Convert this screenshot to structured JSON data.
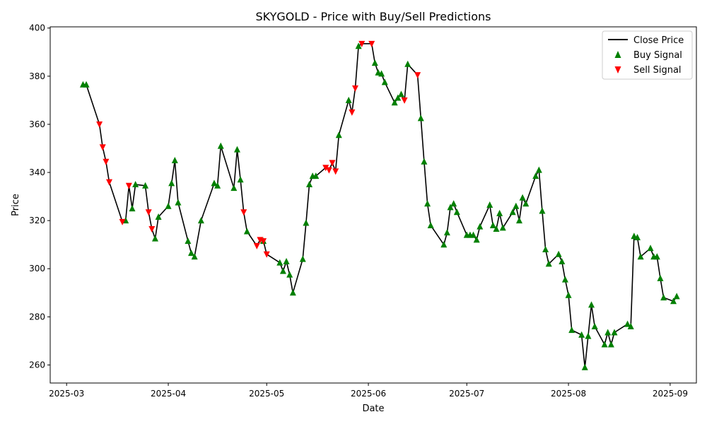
{
  "chart_data": {
    "type": "line",
    "title": "SKYGOLD - Price with Buy/Sell Predictions",
    "xlabel": "Date",
    "ylabel": "Price",
    "x_ticks": [
      "2025-03",
      "2025-04",
      "2025-05",
      "2025-06",
      "2025-07",
      "2025-08",
      "2025-09"
    ],
    "y_ticks": [
      260,
      280,
      300,
      320,
      340,
      360,
      380,
      400
    ],
    "xlim": [
      "2025-02-24",
      "2025-09-09"
    ],
    "ylim": [
      252.5,
      400.5
    ],
    "legend": {
      "position": "top-right",
      "entries": [
        "Close Price",
        "Buy Signal",
        "Sell Signal"
      ]
    },
    "colors": {
      "line": "#000000",
      "buy": "#008000",
      "sell": "#ff0000"
    },
    "series": [
      {
        "name": "Close Price",
        "points": [
          [
            "2025-03-06",
            376.5
          ],
          [
            "2025-03-07",
            376.5
          ],
          [
            "2025-03-11",
            360.0
          ],
          [
            "2025-03-12",
            350.5
          ],
          [
            "2025-03-13",
            344.5
          ],
          [
            "2025-03-14",
            336.0
          ],
          [
            "2025-03-18",
            319.5
          ],
          [
            "2025-03-19",
            320.0
          ],
          [
            "2025-03-20",
            334.5
          ],
          [
            "2025-03-21",
            325.0
          ],
          [
            "2025-03-22",
            335.0
          ],
          [
            "2025-03-25",
            334.5
          ],
          [
            "2025-03-26",
            323.5
          ],
          [
            "2025-03-27",
            316.5
          ],
          [
            "2025-03-28",
            312.5
          ],
          [
            "2025-03-29",
            321.5
          ],
          [
            "2025-04-01",
            326.0
          ],
          [
            "2025-04-02",
            335.5
          ],
          [
            "2025-04-03",
            345.0
          ],
          [
            "2025-04-04",
            327.5
          ],
          [
            "2025-04-07",
            311.5
          ],
          [
            "2025-04-08",
            306.5
          ],
          [
            "2025-04-09",
            305.0
          ],
          [
            "2025-04-11",
            320.0
          ],
          [
            "2025-04-15",
            335.5
          ],
          [
            "2025-04-16",
            334.5
          ],
          [
            "2025-04-17",
            351.0
          ],
          [
            "2025-04-21",
            333.5
          ],
          [
            "2025-04-22",
            349.5
          ],
          [
            "2025-04-23",
            337.0
          ],
          [
            "2025-04-24",
            323.5
          ],
          [
            "2025-04-25",
            315.5
          ],
          [
            "2025-04-28",
            309.5
          ],
          [
            "2025-04-29",
            312.0
          ],
          [
            "2025-04-30",
            311.5
          ],
          [
            "2025-05-01",
            306.0
          ],
          [
            "2025-05-05",
            302.5
          ],
          [
            "2025-05-06",
            299.0
          ],
          [
            "2025-05-07",
            303.0
          ],
          [
            "2025-05-08",
            297.5
          ],
          [
            "2025-05-09",
            290.0
          ],
          [
            "2025-05-12",
            304.0
          ],
          [
            "2025-05-13",
            319.0
          ],
          [
            "2025-05-14",
            335.0
          ],
          [
            "2025-05-15",
            338.5
          ],
          [
            "2025-05-16",
            338.5
          ],
          [
            "2025-05-19",
            342.0
          ],
          [
            "2025-05-20",
            341.0
          ],
          [
            "2025-05-21",
            344.0
          ],
          [
            "2025-05-22",
            340.5
          ],
          [
            "2025-05-23",
            355.5
          ],
          [
            "2025-05-26",
            370.0
          ],
          [
            "2025-05-27",
            365.0
          ],
          [
            "2025-05-28",
            375.0
          ],
          [
            "2025-05-29",
            392.5
          ],
          [
            "2025-05-30",
            393.5
          ],
          [
            "2025-06-02",
            393.5
          ],
          [
            "2025-06-03",
            385.5
          ],
          [
            "2025-06-04",
            381.5
          ],
          [
            "2025-06-05",
            381.0
          ],
          [
            "2025-06-06",
            377.5
          ],
          [
            "2025-06-09",
            369.0
          ],
          [
            "2025-06-10",
            371.0
          ],
          [
            "2025-06-11",
            372.5
          ],
          [
            "2025-06-12",
            370.0
          ],
          [
            "2025-06-13",
            385.0
          ],
          [
            "2025-06-16",
            380.5
          ],
          [
            "2025-06-17",
            362.5
          ],
          [
            "2025-06-18",
            344.5
          ],
          [
            "2025-06-19",
            327.0
          ],
          [
            "2025-06-20",
            318.0
          ],
          [
            "2025-06-24",
            310.0
          ],
          [
            "2025-06-25",
            315.0
          ],
          [
            "2025-06-26",
            325.5
          ],
          [
            "2025-06-27",
            327.0
          ],
          [
            "2025-06-28",
            323.5
          ],
          [
            "2025-07-01",
            314.0
          ],
          [
            "2025-07-02",
            314.0
          ],
          [
            "2025-07-03",
            314.0
          ],
          [
            "2025-07-04",
            312.0
          ],
          [
            "2025-07-05",
            317.5
          ],
          [
            "2025-07-08",
            326.5
          ],
          [
            "2025-07-09",
            318.0
          ],
          [
            "2025-07-10",
            316.5
          ],
          [
            "2025-07-11",
            323.0
          ],
          [
            "2025-07-12",
            317.0
          ],
          [
            "2025-07-15",
            323.5
          ],
          [
            "2025-07-16",
            326.0
          ],
          [
            "2025-07-17",
            320.0
          ],
          [
            "2025-07-18",
            329.5
          ],
          [
            "2025-07-19",
            327.0
          ],
          [
            "2025-07-22",
            338.5
          ],
          [
            "2025-07-23",
            341.0
          ],
          [
            "2025-07-24",
            324.0
          ],
          [
            "2025-07-25",
            308.0
          ],
          [
            "2025-07-26",
            302.0
          ],
          [
            "2025-07-29",
            306.0
          ],
          [
            "2025-07-30",
            303.0
          ],
          [
            "2025-07-31",
            295.5
          ],
          [
            "2025-08-01",
            289.0
          ],
          [
            "2025-08-02",
            274.5
          ],
          [
            "2025-08-05",
            272.5
          ],
          [
            "2025-08-06",
            259.0
          ],
          [
            "2025-08-07",
            272.0
          ],
          [
            "2025-08-08",
            285.0
          ],
          [
            "2025-08-09",
            276.0
          ],
          [
            "2025-08-12",
            268.5
          ],
          [
            "2025-08-13",
            273.5
          ],
          [
            "2025-08-14",
            268.5
          ],
          [
            "2025-08-15",
            273.5
          ],
          [
            "2025-08-19",
            277.0
          ],
          [
            "2025-08-20",
            276.0
          ],
          [
            "2025-08-21",
            313.5
          ],
          [
            "2025-08-22",
            313.0
          ],
          [
            "2025-08-23",
            305.0
          ],
          [
            "2025-08-26",
            308.5
          ],
          [
            "2025-08-27",
            305.0
          ],
          [
            "2025-08-28",
            305.0
          ],
          [
            "2025-08-29",
            296.0
          ],
          [
            "2025-08-30",
            288.0
          ],
          [
            "2025-09-02",
            286.5
          ],
          [
            "2025-09-03",
            288.5
          ]
        ]
      },
      {
        "name": "Buy Signal",
        "points": [
          [
            "2025-03-06",
            376.5
          ],
          [
            "2025-03-07",
            376.5
          ],
          [
            "2025-03-19",
            320.0
          ],
          [
            "2025-03-21",
            325.0
          ],
          [
            "2025-03-22",
            335.0
          ],
          [
            "2025-03-25",
            334.5
          ],
          [
            "2025-03-28",
            312.5
          ],
          [
            "2025-03-29",
            321.5
          ],
          [
            "2025-04-01",
            326.0
          ],
          [
            "2025-04-02",
            335.5
          ],
          [
            "2025-04-03",
            345.0
          ],
          [
            "2025-04-04",
            327.5
          ],
          [
            "2025-04-07",
            311.5
          ],
          [
            "2025-04-08",
            306.5
          ],
          [
            "2025-04-09",
            305.0
          ],
          [
            "2025-04-11",
            320.0
          ],
          [
            "2025-04-15",
            335.5
          ],
          [
            "2025-04-16",
            334.5
          ],
          [
            "2025-04-17",
            351.0
          ],
          [
            "2025-04-21",
            333.5
          ],
          [
            "2025-04-22",
            349.5
          ],
          [
            "2025-04-23",
            337.0
          ],
          [
            "2025-04-25",
            315.5
          ],
          [
            "2025-04-30",
            311.5
          ],
          [
            "2025-05-05",
            302.5
          ],
          [
            "2025-05-06",
            299.0
          ],
          [
            "2025-05-07",
            303.0
          ],
          [
            "2025-05-08",
            297.5
          ],
          [
            "2025-05-09",
            290.0
          ],
          [
            "2025-05-12",
            304.0
          ],
          [
            "2025-05-13",
            319.0
          ],
          [
            "2025-05-14",
            335.0
          ],
          [
            "2025-05-15",
            338.5
          ],
          [
            "2025-05-16",
            338.5
          ],
          [
            "2025-05-23",
            355.5
          ],
          [
            "2025-05-26",
            370.0
          ],
          [
            "2025-05-29",
            392.5
          ],
          [
            "2025-06-03",
            385.5
          ],
          [
            "2025-06-04",
            381.5
          ],
          [
            "2025-06-05",
            381.0
          ],
          [
            "2025-06-06",
            377.5
          ],
          [
            "2025-06-09",
            369.0
          ],
          [
            "2025-06-10",
            371.0
          ],
          [
            "2025-06-11",
            372.5
          ],
          [
            "2025-06-13",
            385.0
          ],
          [
            "2025-06-17",
            362.5
          ],
          [
            "2025-06-18",
            344.5
          ],
          [
            "2025-06-19",
            327.0
          ],
          [
            "2025-06-20",
            318.0
          ],
          [
            "2025-06-24",
            310.0
          ],
          [
            "2025-06-25",
            315.0
          ],
          [
            "2025-06-26",
            325.5
          ],
          [
            "2025-06-27",
            327.0
          ],
          [
            "2025-06-28",
            323.5
          ],
          [
            "2025-07-01",
            314.0
          ],
          [
            "2025-07-02",
            314.0
          ],
          [
            "2025-07-03",
            314.0
          ],
          [
            "2025-07-04",
            312.0
          ],
          [
            "2025-07-05",
            317.5
          ],
          [
            "2025-07-08",
            326.5
          ],
          [
            "2025-07-09",
            318.0
          ],
          [
            "2025-07-10",
            316.5
          ],
          [
            "2025-07-11",
            323.0
          ],
          [
            "2025-07-12",
            317.0
          ],
          [
            "2025-07-15",
            323.5
          ],
          [
            "2025-07-16",
            326.0
          ],
          [
            "2025-07-17",
            320.0
          ],
          [
            "2025-07-18",
            329.5
          ],
          [
            "2025-07-19",
            327.0
          ],
          [
            "2025-07-22",
            338.5
          ],
          [
            "2025-07-23",
            341.0
          ],
          [
            "2025-07-24",
            324.0
          ],
          [
            "2025-07-25",
            308.0
          ],
          [
            "2025-07-26",
            302.0
          ],
          [
            "2025-07-29",
            306.0
          ],
          [
            "2025-07-30",
            303.0
          ],
          [
            "2025-07-31",
            295.5
          ],
          [
            "2025-08-01",
            289.0
          ],
          [
            "2025-08-02",
            274.5
          ],
          [
            "2025-08-05",
            272.5
          ],
          [
            "2025-08-06",
            259.0
          ],
          [
            "2025-08-07",
            272.0
          ],
          [
            "2025-08-08",
            285.0
          ],
          [
            "2025-08-09",
            276.0
          ],
          [
            "2025-08-12",
            268.5
          ],
          [
            "2025-08-13",
            273.5
          ],
          [
            "2025-08-14",
            268.5
          ],
          [
            "2025-08-15",
            273.5
          ],
          [
            "2025-08-19",
            277.0
          ],
          [
            "2025-08-20",
            276.0
          ],
          [
            "2025-08-21",
            313.5
          ],
          [
            "2025-08-22",
            313.0
          ],
          [
            "2025-08-23",
            305.0
          ],
          [
            "2025-08-26",
            308.5
          ],
          [
            "2025-08-27",
            305.0
          ],
          [
            "2025-08-28",
            305.0
          ],
          [
            "2025-08-29",
            296.0
          ],
          [
            "2025-08-30",
            288.0
          ],
          [
            "2025-09-02",
            286.5
          ],
          [
            "2025-09-03",
            288.5
          ]
        ]
      },
      {
        "name": "Sell Signal",
        "points": [
          [
            "2025-03-11",
            360.0
          ],
          [
            "2025-03-12",
            350.5
          ],
          [
            "2025-03-13",
            344.5
          ],
          [
            "2025-03-14",
            336.0
          ],
          [
            "2025-03-18",
            319.5
          ],
          [
            "2025-03-20",
            334.5
          ],
          [
            "2025-03-26",
            323.5
          ],
          [
            "2025-03-27",
            316.5
          ],
          [
            "2025-04-24",
            323.5
          ],
          [
            "2025-04-28",
            309.5
          ],
          [
            "2025-04-29",
            312.0
          ],
          [
            "2025-04-30",
            311.5
          ],
          [
            "2025-05-01",
            306.0
          ],
          [
            "2025-05-19",
            342.0
          ],
          [
            "2025-05-20",
            341.0
          ],
          [
            "2025-05-21",
            344.0
          ],
          [
            "2025-05-22",
            340.5
          ],
          [
            "2025-05-27",
            365.0
          ],
          [
            "2025-05-28",
            375.0
          ],
          [
            "2025-05-30",
            393.5
          ],
          [
            "2025-06-02",
            393.5
          ],
          [
            "2025-06-12",
            370.0
          ],
          [
            "2025-06-16",
            380.5
          ]
        ]
      }
    ]
  }
}
